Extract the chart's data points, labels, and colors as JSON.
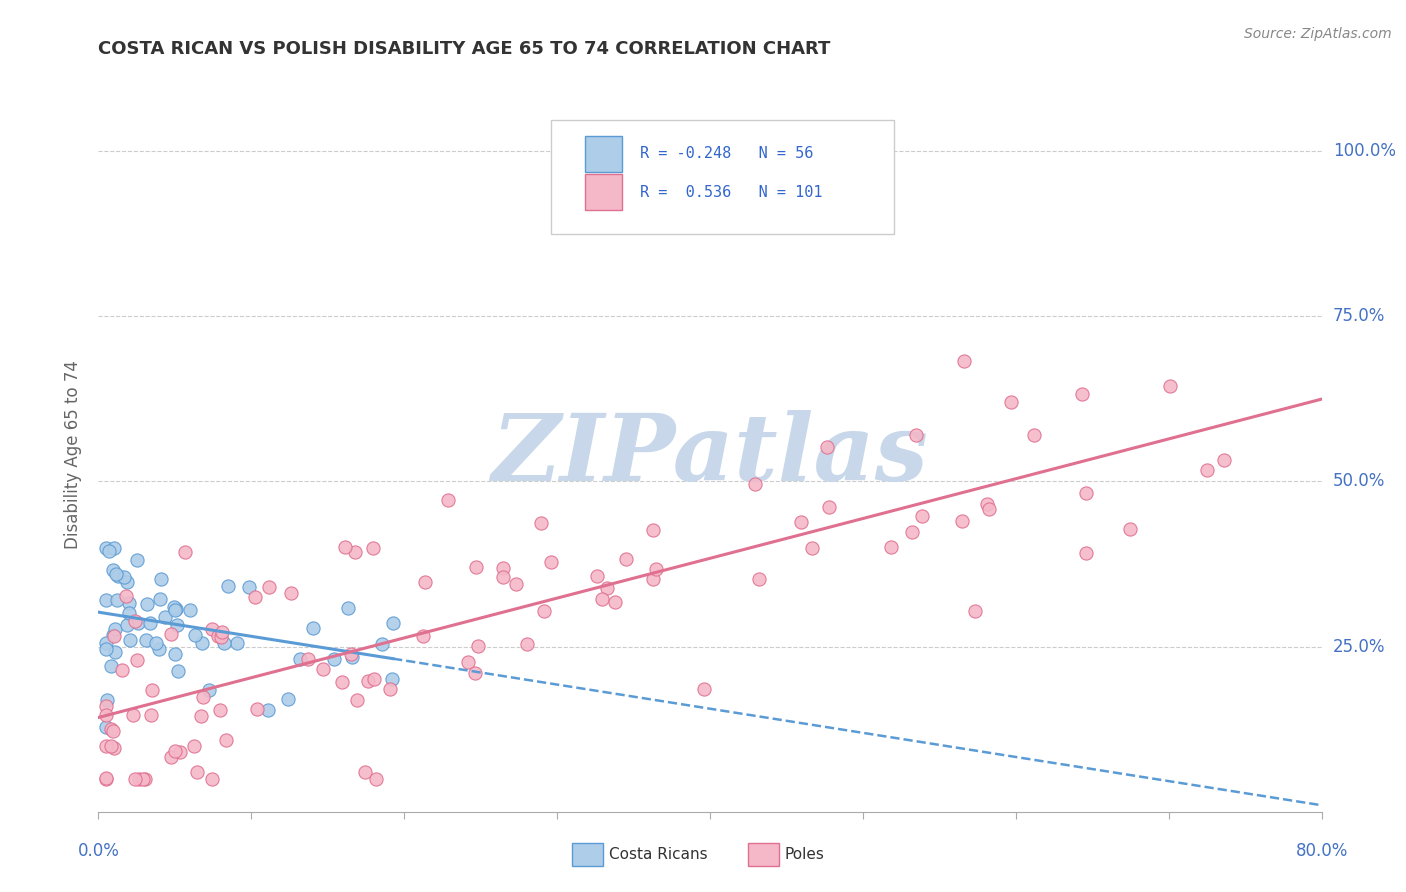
{
  "title": "COSTA RICAN VS POLISH DISABILITY AGE 65 TO 74 CORRELATION CHART",
  "source_text": "Source: ZipAtlas.com",
  "ylabel": "Disability Age 65 to 74",
  "ytick_labels": [
    "25.0%",
    "50.0%",
    "75.0%",
    "100.0%"
  ],
  "ytick_vals": [
    0.25,
    0.5,
    0.75,
    1.0
  ],
  "xmin": 0.0,
  "xmax": 0.8,
  "ymin": 0.0,
  "ymax": 1.08,
  "legend_r1_val": "-0.248",
  "legend_n1_val": "56",
  "legend_r2_val": "0.536",
  "legend_n2_val": "101",
  "color_costa_rican_fill": "#aecde8",
  "color_costa_rican_edge": "#5b9bd5",
  "color_poles_fill": "#f4b8c8",
  "color_poles_edge": "#e07090",
  "color_trend_cr": "#5b9bd5",
  "color_trend_poles": "#e07090",
  "color_legend_text": "#3366cc",
  "color_ytick": "#4472c4",
  "color_xtick": "#4472c4",
  "watermark_color": "#c8d8ea",
  "grid_color": "#cccccc",
  "title_color": "#333333",
  "source_color": "#888888",
  "ylabel_color": "#666666"
}
